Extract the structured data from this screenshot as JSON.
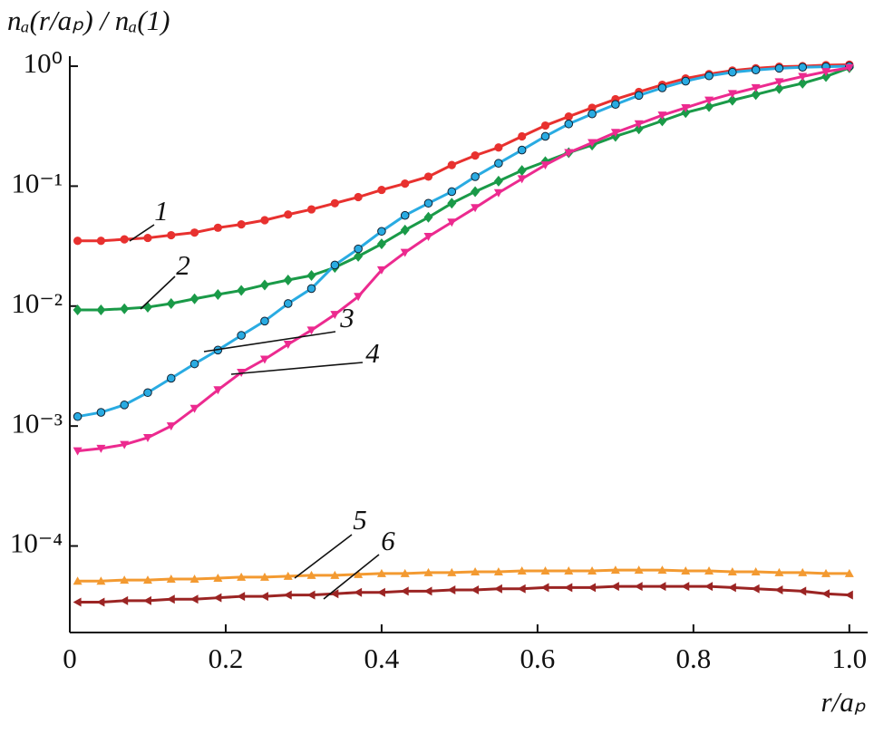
{
  "chart_data": {
    "type": "scatter",
    "xlabel": "r/aₚ",
    "ylabel": "nₐ(r/aₚ) / nₐ(1)",
    "log_y": true,
    "xlim": [
      0,
      1.02
    ],
    "ylim": [
      1.9e-05,
      1.15
    ],
    "xticks": [
      0,
      0.2,
      0.4,
      0.6,
      0.8,
      {
        "value": 1,
        "label": "1.0"
      }
    ],
    "yticks": [
      {
        "value": 0.0001,
        "label": "10⁻⁴"
      },
      {
        "value": 0.001,
        "label": "10⁻³"
      },
      {
        "value": 0.01,
        "label": "10⁻²"
      },
      {
        "value": 0.1,
        "label": "10⁻¹"
      },
      {
        "value": 1,
        "label": "10⁰"
      }
    ],
    "x": [
      0.01,
      0.04,
      0.07,
      0.1,
      0.13,
      0.16,
      0.19,
      0.22,
      0.25,
      0.28,
      0.31,
      0.34,
      0.37,
      0.4,
      0.43,
      0.46,
      0.49,
      0.52,
      0.55,
      0.58,
      0.61,
      0.64,
      0.67,
      0.7,
      0.73,
      0.76,
      0.79,
      0.82,
      0.85,
      0.88,
      0.91,
      0.94,
      0.97,
      1.0
    ],
    "series": [
      {
        "name": "1",
        "color": "#e8312f",
        "marker": "circle",
        "values": [
          0.035,
          0.035,
          0.036,
          0.037,
          0.039,
          0.041,
          0.045,
          0.048,
          0.052,
          0.058,
          0.064,
          0.072,
          0.081,
          0.093,
          0.105,
          0.12,
          0.15,
          0.18,
          0.21,
          0.26,
          0.32,
          0.38,
          0.45,
          0.53,
          0.61,
          0.7,
          0.79,
          0.86,
          0.92,
          0.96,
          0.99,
          1.0,
          1.02,
          1.03
        ]
      },
      {
        "name": "2",
        "color": "#1a9a48",
        "marker": "diamond",
        "values": [
          0.0093,
          0.0093,
          0.0095,
          0.0098,
          0.0105,
          0.0115,
          0.0125,
          0.0135,
          0.015,
          0.0165,
          0.018,
          0.021,
          0.026,
          0.033,
          0.043,
          0.055,
          0.072,
          0.09,
          0.11,
          0.135,
          0.16,
          0.19,
          0.22,
          0.26,
          0.3,
          0.35,
          0.41,
          0.46,
          0.52,
          0.58,
          0.65,
          0.72,
          0.82,
          0.97
        ]
      },
      {
        "name": "3",
        "color": "#29abe2",
        "marker": "circle-outlined",
        "values": [
          0.0012,
          0.0013,
          0.0015,
          0.0019,
          0.0025,
          0.0033,
          0.0043,
          0.0057,
          0.0075,
          0.0105,
          0.014,
          0.022,
          0.03,
          0.042,
          0.057,
          0.072,
          0.09,
          0.12,
          0.155,
          0.2,
          0.26,
          0.33,
          0.4,
          0.48,
          0.57,
          0.66,
          0.75,
          0.83,
          0.89,
          0.93,
          0.96,
          0.98,
          0.99,
          1.0
        ]
      },
      {
        "name": "4",
        "color": "#ec2a8f",
        "marker": "triangle-down",
        "values": [
          0.00062,
          0.00065,
          0.0007,
          0.0008,
          0.001,
          0.0014,
          0.002,
          0.0028,
          0.0036,
          0.0048,
          0.0063,
          0.0085,
          0.012,
          0.02,
          0.028,
          0.038,
          0.05,
          0.066,
          0.088,
          0.115,
          0.15,
          0.19,
          0.23,
          0.28,
          0.33,
          0.39,
          0.45,
          0.52,
          0.59,
          0.66,
          0.74,
          0.82,
          0.9,
          0.97
        ]
      },
      {
        "name": "5",
        "color": "#f39a31",
        "marker": "triangle-up",
        "values": [
          5.1e-05,
          5.1e-05,
          5.2e-05,
          5.2e-05,
          5.3e-05,
          5.3e-05,
          5.4e-05,
          5.5e-05,
          5.5e-05,
          5.6e-05,
          5.7e-05,
          5.7e-05,
          5.8e-05,
          5.9e-05,
          5.9e-05,
          6e-05,
          6e-05,
          6.1e-05,
          6.1e-05,
          6.2e-05,
          6.2e-05,
          6.2e-05,
          6.2e-05,
          6.3e-05,
          6.3e-05,
          6.3e-05,
          6.2e-05,
          6.2e-05,
          6.1e-05,
          6.1e-05,
          6e-05,
          6e-05,
          5.9e-05,
          5.9e-05
        ]
      },
      {
        "name": "6",
        "color": "#9b2423",
        "marker": "triangle-left",
        "values": [
          3.4e-05,
          3.4e-05,
          3.5e-05,
          3.5e-05,
          3.6e-05,
          3.6e-05,
          3.7e-05,
          3.8e-05,
          3.8e-05,
          3.9e-05,
          3.9e-05,
          4e-05,
          4.1e-05,
          4.1e-05,
          4.2e-05,
          4.2e-05,
          4.3e-05,
          4.3e-05,
          4.4e-05,
          4.4e-05,
          4.5e-05,
          4.5e-05,
          4.5e-05,
          4.6e-05,
          4.6e-05,
          4.6e-05,
          4.6e-05,
          4.6e-05,
          4.5e-05,
          4.4e-05,
          4.3e-05,
          4.2e-05,
          4e-05,
          3.9e-05
        ]
      }
    ]
  }
}
